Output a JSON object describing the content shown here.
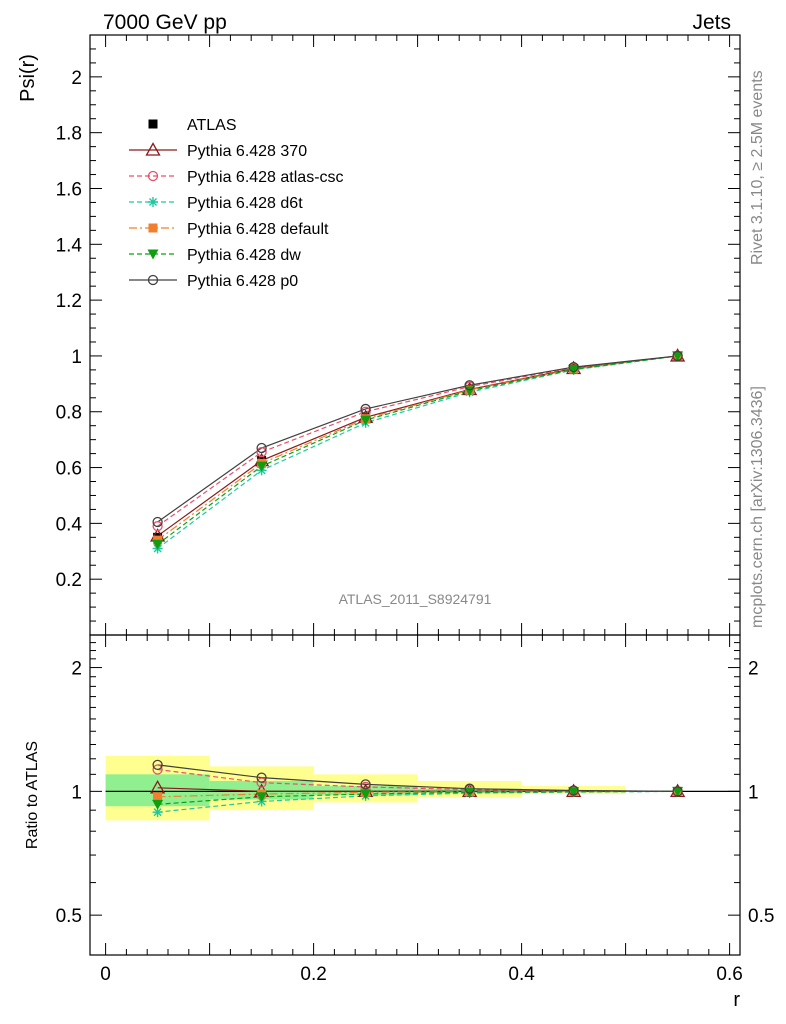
{
  "header": {
    "left": "7000 GeV pp",
    "right": "Jets"
  },
  "side": {
    "rivet": "Rivet 3.1.10, ≥ 2.5M events",
    "mcplots": "mcplots.cern.ch [arXiv:1306.3436]"
  },
  "analysis_label": "ATLAS_2011_S8924791",
  "chart_data": [
    {
      "type": "line",
      "title": "",
      "xlabel": "",
      "ylabel": "Psi(r)",
      "xlim": [
        -0.015,
        0.61
      ],
      "ylim": [
        0,
        2.15
      ],
      "yticks": [
        0.2,
        0.4,
        0.6,
        0.8,
        1,
        1.2,
        1.4,
        1.6,
        1.8,
        2
      ],
      "ytick_labels": [
        "0.2",
        "0.4",
        "0.6",
        "0.8",
        "1",
        "1.2",
        "1.4",
        "1.6",
        "1.8",
        "2"
      ],
      "x": [
        0.05,
        0.15,
        0.25,
        0.35,
        0.45,
        0.55
      ],
      "legend_position": "top-left",
      "series": [
        {
          "name": "ATLAS",
          "color": "#000000",
          "marker": "filled-square",
          "line": "none",
          "values": [
            0.35,
            0.625,
            0.78,
            0.88,
            0.955,
            1.0
          ]
        },
        {
          "name": "Pythia 6.428 370",
          "color": "#8b1a1a",
          "marker": "open-triangle",
          "line": "solid",
          "values": [
            0.355,
            0.625,
            0.78,
            0.88,
            0.955,
            1.0
          ]
        },
        {
          "name": "Pythia 6.428 atlas-csc",
          "color": "#e8506a",
          "marker": "open-circle",
          "line": "dashed",
          "values": [
            0.39,
            0.655,
            0.8,
            0.89,
            0.958,
            1.0
          ]
        },
        {
          "name": "Pythia 6.428 d6t",
          "color": "#20c8a0",
          "marker": "star",
          "line": "dashed",
          "values": [
            0.31,
            0.59,
            0.76,
            0.87,
            0.95,
            1.0
          ]
        },
        {
          "name": "Pythia 6.428 default",
          "color": "#f08030",
          "marker": "filled-square",
          "line": "dashdot",
          "values": [
            0.34,
            0.615,
            0.775,
            0.878,
            0.953,
            1.0
          ]
        },
        {
          "name": "Pythia 6.428 dw",
          "color": "#109e10",
          "marker": "filled-triangle-down",
          "line": "dashed",
          "values": [
            0.325,
            0.605,
            0.77,
            0.875,
            0.952,
            1.0
          ]
        },
        {
          "name": "Pythia 6.428 p0",
          "color": "#404040",
          "marker": "open-circle",
          "line": "solid",
          "values": [
            0.405,
            0.67,
            0.81,
            0.895,
            0.96,
            1.0
          ]
        }
      ]
    },
    {
      "type": "line",
      "title": "",
      "xlabel": "r",
      "ylabel": "Ratio to ATLAS",
      "xlim": [
        -0.015,
        0.61
      ],
      "ylim": [
        0.4,
        2.4
      ],
      "log_y": true,
      "xticks": [
        0,
        0.2,
        0.4,
        0.6
      ],
      "xtick_labels": [
        "0",
        "0.2",
        "0.4",
        "0.6"
      ],
      "yticks": [
        0.5,
        1,
        2
      ],
      "ytick_labels": [
        "0.5",
        "1",
        "2"
      ],
      "x": [
        0.05,
        0.15,
        0.25,
        0.35,
        0.45,
        0.55
      ],
      "bands": {
        "x_low": [
          0.0,
          0.1,
          0.2,
          0.3,
          0.4,
          0.5
        ],
        "x_high": [
          0.1,
          0.2,
          0.3,
          0.4,
          0.5,
          0.6
        ],
        "stat": {
          "color": "#90f090",
          "low": [
            0.92,
            0.955,
            0.98,
            0.99,
            0.995,
            1.0
          ],
          "high": [
            1.1,
            1.06,
            1.03,
            1.015,
            1.005,
            1.0
          ]
        },
        "total": {
          "color": "#ffff90",
          "low": [
            0.85,
            0.9,
            0.94,
            0.965,
            0.985,
            1.0
          ],
          "high": [
            1.22,
            1.15,
            1.1,
            1.06,
            1.03,
            1.0
          ]
        }
      },
      "reference_line": 1,
      "series": [
        {
          "name": "Pythia 6.428 370",
          "color": "#8b1a1a",
          "marker": "open-triangle",
          "line": "solid",
          "values": [
            1.02,
            1.0,
            1.0,
            1.0,
            1.0,
            1.0
          ]
        },
        {
          "name": "Pythia 6.428 atlas-csc",
          "color": "#e8506a",
          "marker": "open-circle",
          "line": "dashed",
          "values": [
            1.13,
            1.05,
            1.025,
            1.01,
            1.003,
            1.0
          ]
        },
        {
          "name": "Pythia 6.428 d6t",
          "color": "#20c8a0",
          "marker": "star",
          "line": "dashed",
          "values": [
            0.89,
            0.945,
            0.975,
            0.99,
            0.996,
            1.0
          ]
        },
        {
          "name": "Pythia 6.428 default",
          "color": "#f08030",
          "marker": "filled-square",
          "line": "dashdot",
          "values": [
            0.97,
            0.985,
            0.995,
            0.998,
            0.999,
            1.0
          ]
        },
        {
          "name": "Pythia 6.428 dw",
          "color": "#109e10",
          "marker": "filled-triangle-down",
          "line": "dashed",
          "values": [
            0.93,
            0.97,
            0.985,
            0.995,
            0.998,
            1.0
          ]
        },
        {
          "name": "Pythia 6.428 p0",
          "color": "#404040",
          "marker": "open-circle",
          "line": "solid",
          "values": [
            1.16,
            1.08,
            1.04,
            1.015,
            1.005,
            1.0
          ]
        }
      ]
    }
  ]
}
